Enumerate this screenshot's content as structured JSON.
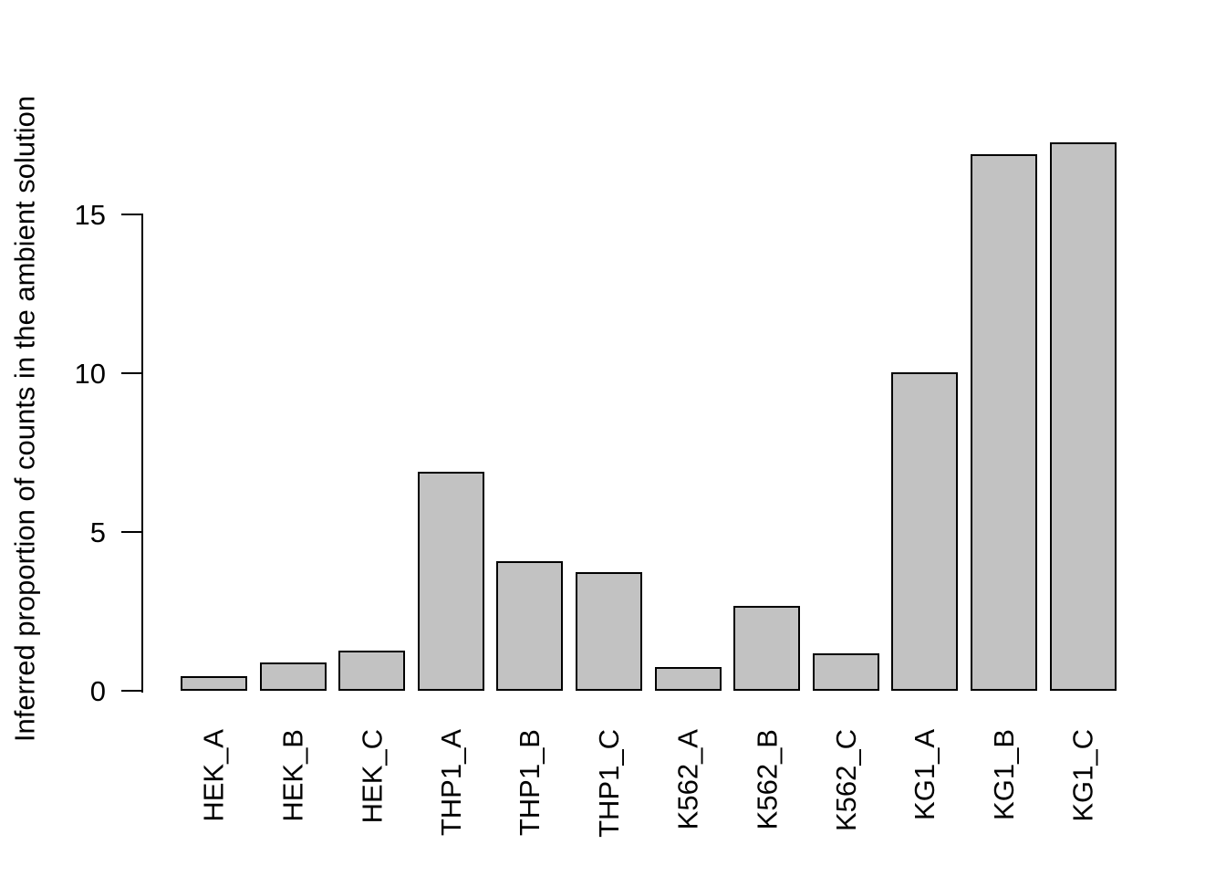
{
  "chart_data": {
    "type": "bar",
    "title": "",
    "xlabel": "",
    "ylabel": "Inferred proportion of counts in the ambient solution",
    "categories": [
      "HEK_A",
      "HEK_B",
      "HEK_C",
      "THP1_A",
      "THP1_B",
      "THP1_C",
      "K562_A",
      "K562_B",
      "K562_C",
      "KG1_A",
      "KG1_B",
      "KG1_C"
    ],
    "values": [
      0.45,
      0.89,
      1.26,
      6.9,
      4.08,
      3.74,
      0.75,
      2.67,
      1.18,
      10.03,
      16.9,
      17.27
    ],
    "yticks": [
      0,
      5,
      10,
      15
    ],
    "ylim": [
      0,
      17.4
    ],
    "grid": false,
    "legend": "none",
    "colors": {
      "bar_fill": "#c2c2c2",
      "bar_border": "#000000",
      "axis": "#000000",
      "text": "#000000",
      "background": "#ffffff"
    }
  }
}
